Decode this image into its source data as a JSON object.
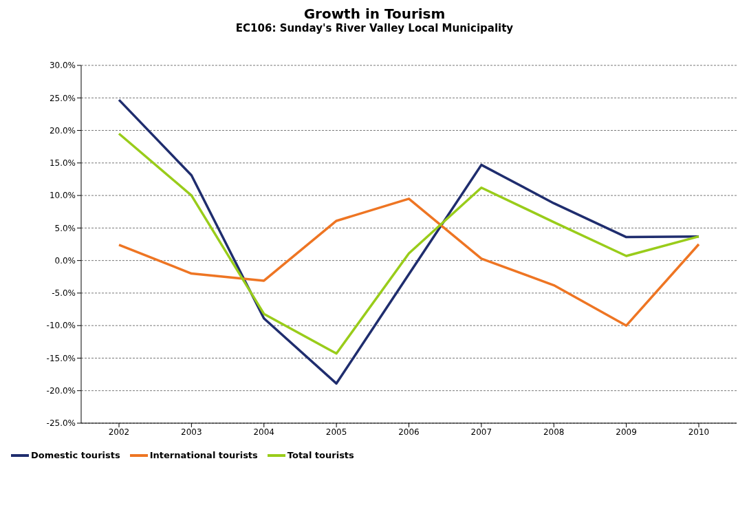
{
  "chart_data": {
    "type": "line",
    "title": "Growth in Tourism",
    "subtitle": "EC106: Sunday's River Valley Local Municipality",
    "categories": [
      "2002",
      "2003",
      "2004",
      "2005",
      "2006",
      "2007",
      "2008",
      "2009",
      "2010"
    ],
    "series": [
      {
        "name": "Domestic tourists",
        "color": "#1f2d6e",
        "values": [
          24.7,
          13.1,
          -8.9,
          -18.9,
          -2.1,
          14.7,
          8.8,
          3.6,
          3.7
        ]
      },
      {
        "name": "International tourists",
        "color": "#ee7523",
        "values": [
          2.4,
          -2.0,
          -3.1,
          6.1,
          9.5,
          0.3,
          -3.8,
          -10.0,
          2.5
        ]
      },
      {
        "name": "Total tourists",
        "color": "#99cc1a",
        "values": [
          19.5,
          10.0,
          -8.2,
          -14.3,
          1.1,
          11.2,
          5.9,
          0.7,
          3.7
        ]
      }
    ],
    "ylim": [
      -25,
      30
    ],
    "yticks": [
      {
        "value": -25,
        "label": "-25.0%"
      },
      {
        "value": -20,
        "label": "-20.0%"
      },
      {
        "value": -15,
        "label": "-15.0%"
      },
      {
        "value": -10,
        "label": "-10.0%"
      },
      {
        "value": -5,
        "label": "-5.0%"
      },
      {
        "value": 0,
        "label": "0.0%"
      },
      {
        "value": 5,
        "label": "5.0%"
      },
      {
        "value": 10,
        "label": "10.0%"
      },
      {
        "value": 15,
        "label": "15.0%"
      },
      {
        "value": 20,
        "label": "20.0%"
      },
      {
        "value": 25,
        "label": "25.0%"
      },
      {
        "value": 30,
        "label": "30.0%"
      }
    ],
    "grid": "y",
    "legend": "bottom left",
    "marker": "none",
    "line_style": "solid"
  }
}
